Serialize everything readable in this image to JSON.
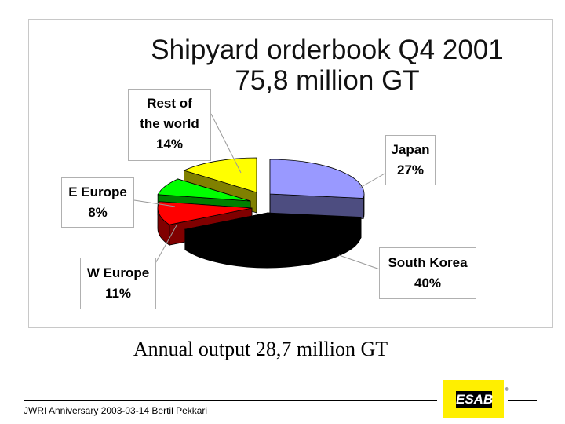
{
  "chart_data": {
    "type": "pie",
    "title": "Shipyard orderbook Q4 2001",
    "subtitle": "75,8 million GT",
    "slices": [
      {
        "label": "Japan",
        "value": 27,
        "value_label": "27%",
        "color": "#9999ff"
      },
      {
        "label": "South Korea",
        "value": 40,
        "value_label": "40%",
        "color": "#000000"
      },
      {
        "label": "W Europe",
        "value": 11,
        "value_label": "11%",
        "color": "#ff0000"
      },
      {
        "label": "E Europe",
        "value": 8,
        "value_label": "8%",
        "color": "#00ff00"
      },
      {
        "label": "Rest of the world",
        "value": 14,
        "value_label": "14%",
        "color": "#ffff00"
      }
    ],
    "legend": "none"
  },
  "caption": "Annual output 28,7 million GT",
  "footer": {
    "text": "JWRI Anniversary 2003-03-14 Bertil Pekkari"
  },
  "logo": {
    "text": "ESAB",
    "reg": "®"
  }
}
